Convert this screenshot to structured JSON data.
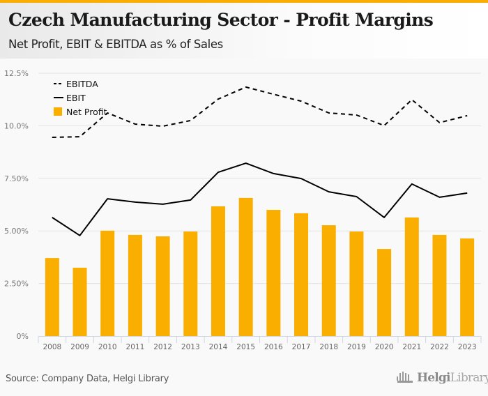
{
  "header": {
    "title": "Czech Manufacturing Sector - Profit Margins",
    "subtitle": "Net Profit, EBIT & EBITDA as % of Sales"
  },
  "footer": {
    "source": "Source: Company Data, Helgi Library",
    "logo_bold": "Helgi",
    "logo_light": "Library."
  },
  "colors": {
    "accent": "#f9ae00",
    "bar": "#f9ae00",
    "line": "#000000",
    "grid": "#e3e3e3",
    "axis": "#cdd6e6"
  },
  "chart_data": {
    "type": "bar",
    "title": "Czech Manufacturing Sector - Profit Margins",
    "subtitle": "Net Profit, EBIT & EBITDA as % of Sales",
    "xlabel": "",
    "ylabel": "",
    "ylim": [
      0,
      12.5
    ],
    "yticks": [
      0,
      2.5,
      5.0,
      7.5,
      10.0,
      12.5
    ],
    "ytick_labels": [
      "0%",
      "2.50%",
      "5.00%",
      "7.50%",
      "10.0%",
      "12.5%"
    ],
    "grid": true,
    "legend_position": "top-left",
    "categories": [
      "2008",
      "2009",
      "2010",
      "2011",
      "2012",
      "2013",
      "2014",
      "2015",
      "2016",
      "2017",
      "2018",
      "2019",
      "2020",
      "2021",
      "2022",
      "2023"
    ],
    "series": [
      {
        "name": "EBITDA",
        "type": "line",
        "style": "dashed",
        "values": [
          9.45,
          9.48,
          10.61,
          10.08,
          9.98,
          10.25,
          11.27,
          11.84,
          11.5,
          11.17,
          10.61,
          10.51,
          10.01,
          11.24,
          10.15,
          10.48
        ]
      },
      {
        "name": "EBIT",
        "type": "line",
        "style": "solid",
        "values": [
          5.64,
          4.78,
          6.53,
          6.37,
          6.27,
          6.47,
          7.79,
          8.22,
          7.73,
          7.49,
          6.86,
          6.63,
          5.64,
          7.23,
          6.6,
          6.8
        ]
      },
      {
        "name": "Net Profit",
        "type": "bar",
        "values": [
          3.71,
          3.25,
          5.01,
          4.81,
          4.74,
          4.97,
          6.17,
          6.57,
          6.0,
          5.84,
          5.27,
          4.97,
          4.14,
          5.64,
          4.81,
          4.64
        ]
      }
    ]
  }
}
